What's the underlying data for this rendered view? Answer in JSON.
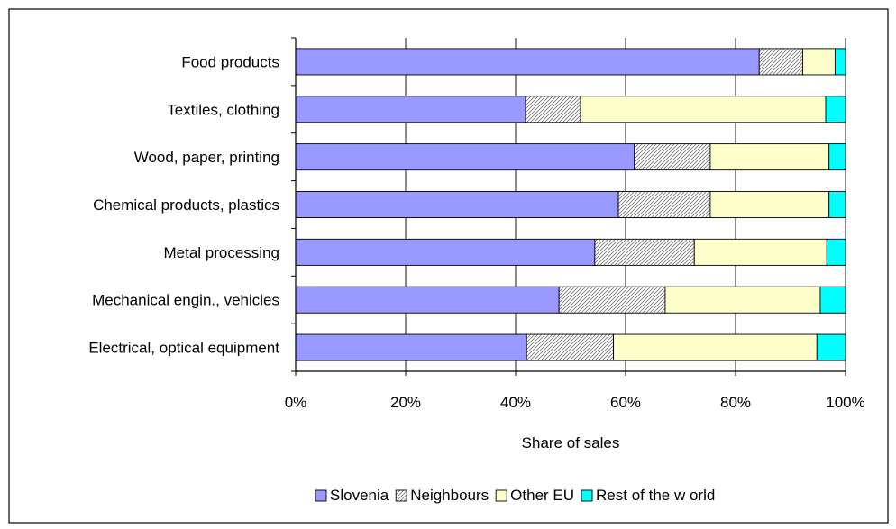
{
  "chart_data": {
    "type": "bar",
    "orientation": "horizontal",
    "stacked": true,
    "title": "",
    "xlabel": "Share of sales",
    "ylabel": "",
    "xlim": [
      0,
      100
    ],
    "x_ticks": [
      "0%",
      "20%",
      "40%",
      "60%",
      "80%",
      "100%"
    ],
    "grid": true,
    "legend_position": "bottom",
    "categories": [
      "Food products",
      "Textiles, clothing",
      "Wood, paper, printing",
      "Chemical products, plastics",
      "Metal processing",
      "Mechanical engin., vehicles",
      "Electrical, optical equipment"
    ],
    "series": [
      {
        "name": "Slovenia",
        "color": "#9999ff",
        "pattern": "solid",
        "values": [
          84.3,
          41.8,
          61.6,
          58.7,
          54.4,
          47.9,
          42.0
        ]
      },
      {
        "name": "Neighbours",
        "color": "#ffffff",
        "pattern": "hatch",
        "values": [
          7.9,
          10.0,
          13.8,
          16.7,
          18.1,
          19.3,
          15.8
        ]
      },
      {
        "name": "Other EU",
        "color": "#ffffcc",
        "pattern": "solid",
        "values": [
          5.9,
          44.6,
          21.6,
          21.6,
          24.1,
          28.2,
          37.0
        ]
      },
      {
        "name": "Rest of the w orld",
        "color": "#00ffff",
        "pattern": "solid",
        "values": [
          1.9,
          3.6,
          3.0,
          3.0,
          3.4,
          4.6,
          5.2
        ]
      }
    ]
  }
}
